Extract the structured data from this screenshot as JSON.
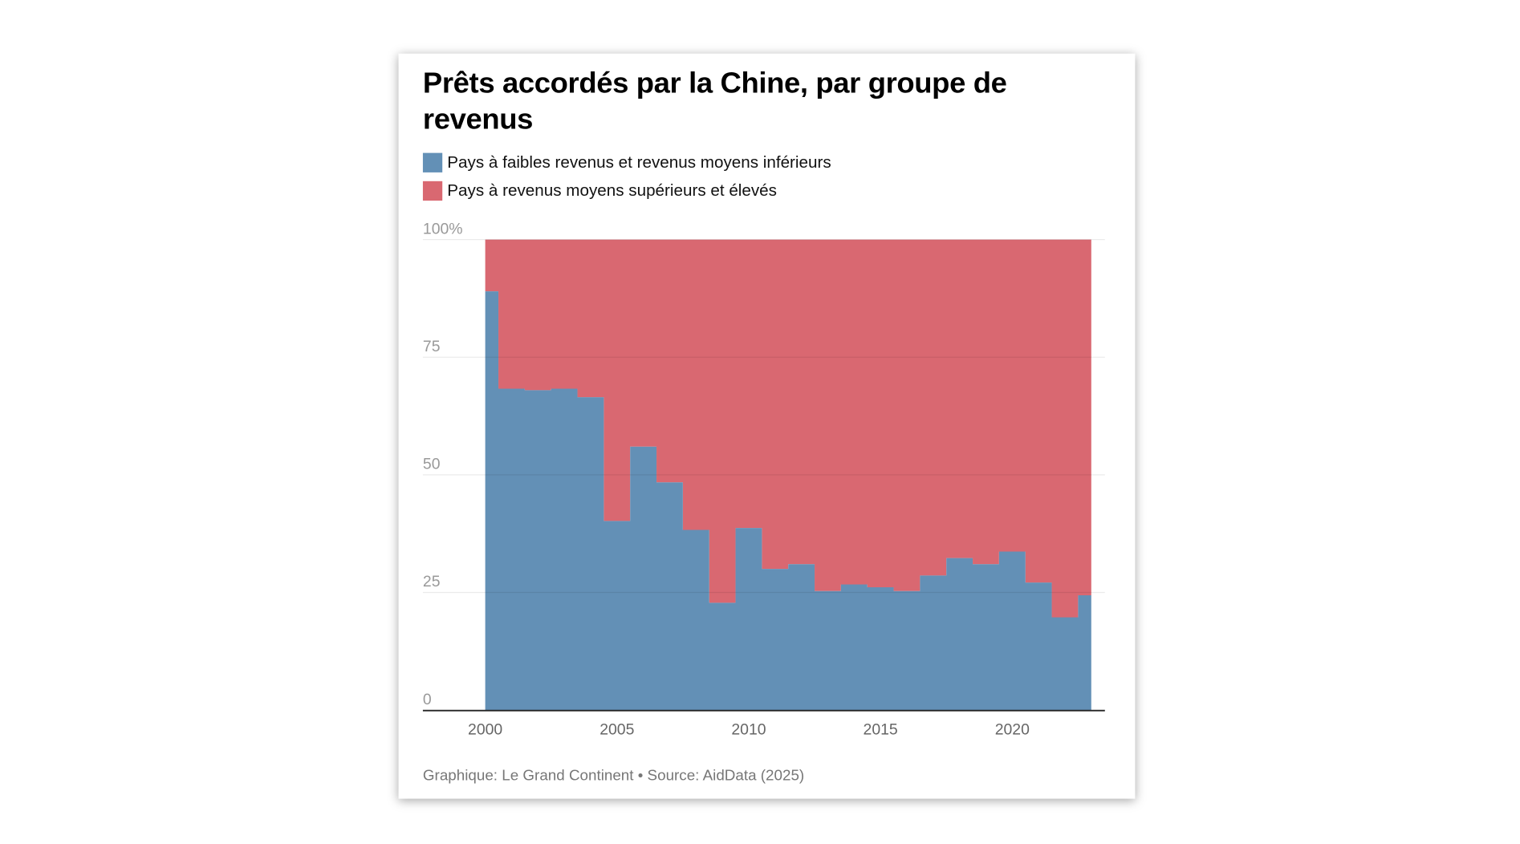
{
  "chart_data": {
    "type": "area",
    "step": "middle",
    "stacked": "percent",
    "title": "Prêts accordés par la Chine, par groupe de revenus",
    "x": [
      2000,
      2001,
      2002,
      2003,
      2004,
      2005,
      2006,
      2007,
      2008,
      2009,
      2010,
      2011,
      2012,
      2013,
      2014,
      2015,
      2016,
      2017,
      2018,
      2019,
      2020,
      2021,
      2022,
      2023
    ],
    "series": [
      {
        "name": "Pays à faibles revenus et revenus moyens inférieurs",
        "color": "#6390b6",
        "values": [
          89,
          68.3,
          68,
          68.3,
          66.5,
          40.2,
          56,
          48.4,
          38.3,
          22.8,
          38.7,
          30,
          31,
          25.3,
          26.7,
          26.1,
          25.3,
          28.6,
          32.3,
          31,
          33.7,
          27.1,
          19.7,
          24.4
        ]
      },
      {
        "name": "Pays à revenus moyens supérieurs et élevés",
        "color": "#d96871",
        "values": [
          11,
          31.7,
          32,
          31.7,
          33.5,
          59.8,
          44,
          51.6,
          61.7,
          77.2,
          61.3,
          70,
          69,
          74.7,
          73.3,
          73.9,
          74.7,
          71.4,
          67.7,
          69,
          66.3,
          72.9,
          80.3,
          75.6
        ]
      }
    ],
    "ylim": [
      0,
      100
    ],
    "yticks": [
      "0",
      "25",
      "50",
      "75",
      "100%"
    ],
    "ytick_values": [
      0,
      25,
      50,
      75,
      100
    ],
    "xticks": [
      "2000",
      "2005",
      "2010",
      "2015",
      "2020"
    ],
    "xtick_values": [
      2000,
      2005,
      2010,
      2015,
      2020
    ],
    "xlim": [
      2000,
      2023
    ],
    "grid": true,
    "legend_position": "top-left",
    "footer": "Graphique: Le Grand Continent • Source: AidData (2025)"
  }
}
